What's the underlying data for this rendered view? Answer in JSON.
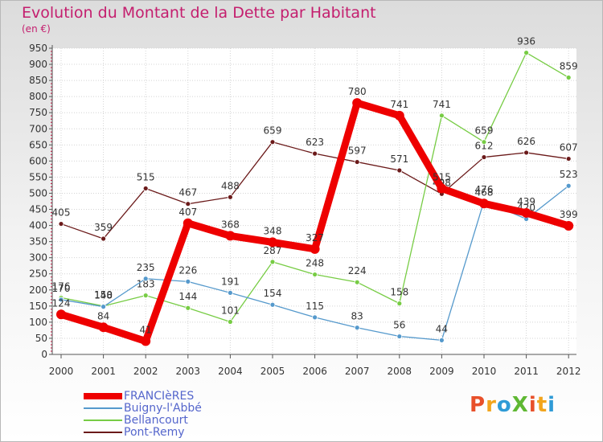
{
  "title": "Evolution du Montant de la Dette par Habitant",
  "unit_label": "(en €)",
  "logo": {
    "text": "ProXiti",
    "colors": [
      "#e8502a",
      "#f2a51d",
      "#2f9bd6",
      "#5fb833",
      "#e8502a",
      "#f2a51d",
      "#2f9bd6"
    ]
  },
  "chart_data": {
    "type": "line",
    "title": "Evolution du Montant de la Dette par Habitant",
    "ylabel": "(en €)",
    "xlabel": "",
    "ylim": [
      0,
      950
    ],
    "yticks": [
      0,
      50,
      100,
      150,
      200,
      250,
      300,
      350,
      400,
      450,
      500,
      550,
      600,
      650,
      700,
      750,
      800,
      850,
      900,
      950
    ],
    "x": [
      "2000",
      "2001",
      "2002",
      "2003",
      "2004",
      "2005",
      "2006",
      "2007",
      "2008",
      "2009",
      "2010",
      "2011",
      "2012"
    ],
    "grid": true,
    "legend_position": "bottom-left",
    "series": [
      {
        "name": "Pont-Remy",
        "color": "#6b1a1a",
        "values": [
          405,
          359,
          515,
          467,
          488,
          659,
          623,
          597,
          571,
          498,
          612,
          626,
          607
        ]
      },
      {
        "name": "Bellancourt",
        "color": "#77cc44",
        "values": [
          176,
          150,
          183,
          144,
          101,
          287,
          248,
          224,
          158,
          741,
          659,
          936,
          859
        ]
      },
      {
        "name": "Buigny-l'Abbé",
        "color": "#5599cc",
        "values": [
          170,
          148,
          235,
          226,
          191,
          154,
          115,
          83,
          56,
          44,
          476,
          420,
          523
        ]
      },
      {
        "name": "FRANCIèRES",
        "color": "#ee0000",
        "values": [
          124,
          84,
          41,
          407,
          368,
          348,
          327,
          780,
          741,
          515,
          468,
          439,
          399
        ]
      }
    ],
    "legend_order": [
      "FRANCIèRES",
      "Buigny-l'Abbé",
      "Bellancourt",
      "Pont-Remy"
    ]
  }
}
